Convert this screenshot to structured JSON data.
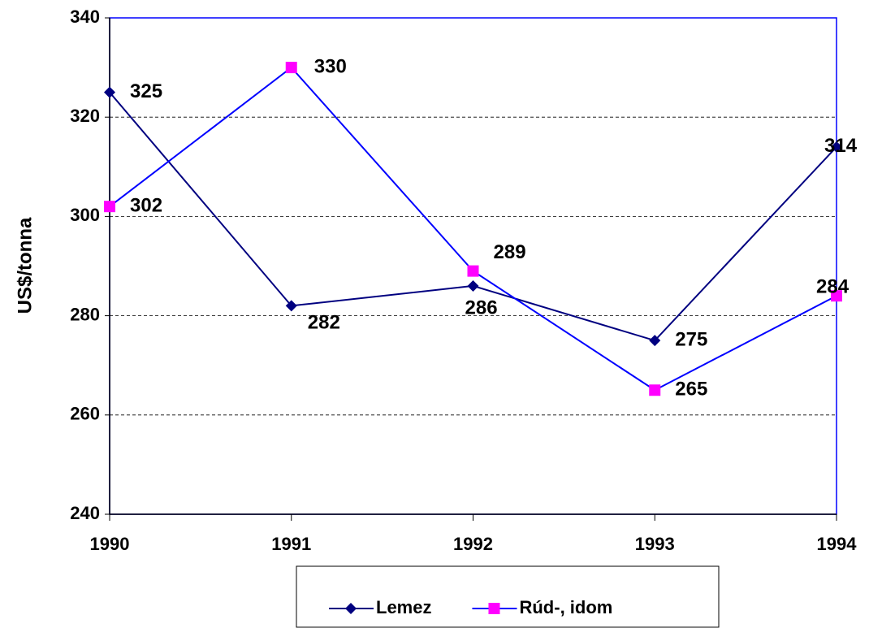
{
  "chart_data": {
    "type": "line",
    "y_label": "US$/tonna",
    "categories": [
      "1990",
      "1991",
      "1992",
      "1993",
      "1994"
    ],
    "series": [
      {
        "name": "Lemez",
        "color": "#000080",
        "line_color": "#000080",
        "marker": "diamond",
        "values": [
          325,
          282,
          286,
          275,
          314
        ]
      },
      {
        "name": "Rúd-, idom",
        "color": "#ff00ff",
        "line_color": "#0000ff",
        "marker": "square",
        "values": [
          302,
          330,
          289,
          265,
          284
        ]
      }
    ],
    "ylim": [
      240,
      340
    ],
    "yticks": [
      240,
      260,
      280,
      300,
      320,
      340
    ],
    "grid": true,
    "legend": "bottom"
  }
}
